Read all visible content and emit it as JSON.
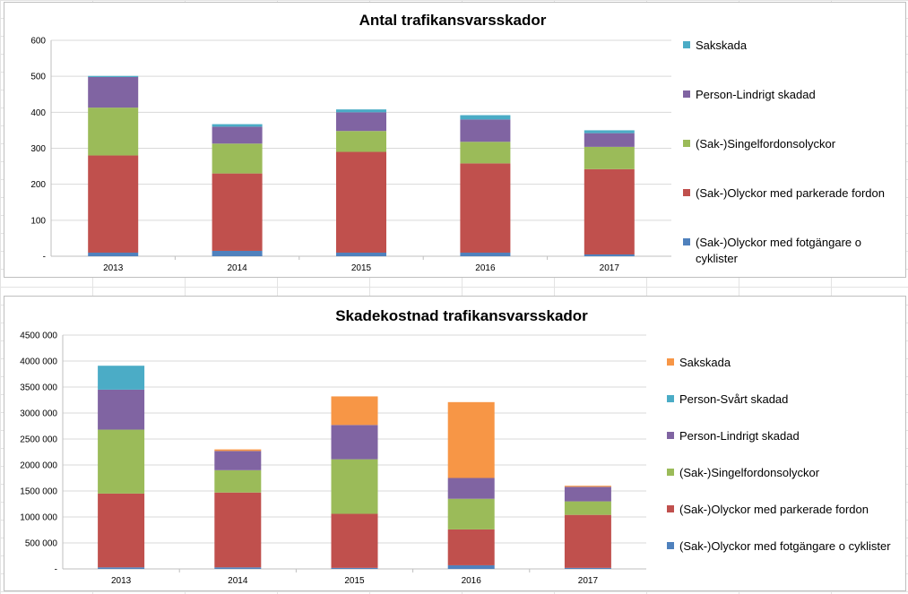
{
  "chart_data": [
    {
      "type": "bar",
      "stacked": true,
      "title": "Antal trafikansvarsskador",
      "categories": [
        "2013",
        "2014",
        "2015",
        "2016",
        "2017"
      ],
      "ylim": [
        0,
        600
      ],
      "yticks": [
        {
          "value": 0,
          "label": "-"
        },
        {
          "value": 100,
          "label": "100"
        },
        {
          "value": 200,
          "label": "200"
        },
        {
          "value": 300,
          "label": "300"
        },
        {
          "value": 400,
          "label": "400"
        },
        {
          "value": 500,
          "label": "500"
        },
        {
          "value": 600,
          "label": "600"
        }
      ],
      "legend_position": "right",
      "series": [
        {
          "name": "(Sak-)Olyckor med fotgängare o cyklister",
          "color": "#4f81bd",
          "values": [
            10,
            15,
            10,
            10,
            5
          ]
        },
        {
          "name": "(Sak-)Olyckor med parkerade fordon",
          "color": "#c0504d",
          "values": [
            270,
            215,
            280,
            248,
            237
          ]
        },
        {
          "name": "(Sak-)Singelfordonsolyckor",
          "color": "#9bbb59",
          "values": [
            133,
            83,
            58,
            60,
            62
          ]
        },
        {
          "name": "Person-Lindrigt skadad",
          "color": "#8064a2",
          "values": [
            85,
            47,
            52,
            62,
            38
          ]
        },
        {
          "name": "Sakskada",
          "color": "#4bacc6",
          "values": [
            3,
            7,
            8,
            12,
            8
          ]
        }
      ]
    },
    {
      "type": "bar",
      "stacked": true,
      "title": "Skadekostnad trafikansvarsskador",
      "categories": [
        "2013",
        "2014",
        "2015",
        "2016",
        "2017"
      ],
      "ylim": [
        0,
        4500000
      ],
      "yticks": [
        {
          "value": 0,
          "label": "-"
        },
        {
          "value": 500000,
          "label": "500 000"
        },
        {
          "value": 1000000,
          "label": "1000 000"
        },
        {
          "value": 1500000,
          "label": "1500 000"
        },
        {
          "value": 2000000,
          "label": "2000 000"
        },
        {
          "value": 2500000,
          "label": "2500 000"
        },
        {
          "value": 3000000,
          "label": "3000 000"
        },
        {
          "value": 3500000,
          "label": "3500 000"
        },
        {
          "value": 4000000,
          "label": "4000 000"
        },
        {
          "value": 4500000,
          "label": "4500 000"
        }
      ],
      "legend_position": "right",
      "series": [
        {
          "name": "(Sak-)Olyckor med fotgängare o cyklister",
          "color": "#4f81bd",
          "values": [
            30000,
            30000,
            20000,
            70000,
            20000
          ]
        },
        {
          "name": "(Sak-)Olyckor med parkerade fordon",
          "color": "#c0504d",
          "values": [
            1420000,
            1440000,
            1040000,
            690000,
            1020000
          ]
        },
        {
          "name": "(Sak-)Singelfordonsolyckor",
          "color": "#9bbb59",
          "values": [
            1230000,
            430000,
            1050000,
            590000,
            260000
          ]
        },
        {
          "name": "Person-Lindrigt skadad",
          "color": "#8064a2",
          "values": [
            770000,
            370000,
            660000,
            400000,
            280000
          ]
        },
        {
          "name": "Person-Svårt skadad",
          "color": "#4bacc6",
          "values": [
            460000,
            0,
            0,
            0,
            0
          ]
        },
        {
          "name": "Sakskada",
          "color": "#f79646",
          "values": [
            0,
            30000,
            550000,
            1460000,
            20000
          ]
        }
      ]
    }
  ]
}
